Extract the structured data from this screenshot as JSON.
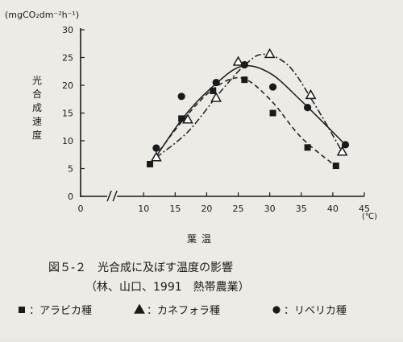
{
  "chart_data": {
    "type": "scatter",
    "unit_top": "(mgCO₂dm⁻²h⁻¹)",
    "ylabel": "光合成速度",
    "xlabel": "葉温",
    "xunit": "(℃)",
    "x_ticks": [
      0,
      10,
      15,
      20,
      25,
      30,
      35,
      40,
      45
    ],
    "y_ticks": [
      0,
      5,
      10,
      15,
      20,
      25,
      30
    ],
    "xlim": [
      0,
      45
    ],
    "ylim": [
      0,
      30
    ],
    "axis_break": true,
    "caption_title": "図５-２　光合成に及ぼす温度の影響",
    "caption_source": "（林、山口、1991　熱帯農業）",
    "series": [
      {
        "name": "アラビカ種",
        "marker": "square",
        "line": "dashed",
        "points": [
          [
            11,
            5.8
          ],
          [
            16,
            14
          ],
          [
            21,
            19
          ],
          [
            26,
            21
          ],
          [
            30.5,
            15
          ],
          [
            36,
            8.8
          ],
          [
            40.5,
            5.5
          ]
        ],
        "curve": [
          [
            11,
            5.8
          ],
          [
            16,
            13.4
          ],
          [
            21,
            19.3
          ],
          [
            25.5,
            21.3
          ],
          [
            30,
            17.5
          ],
          [
            35,
            10.6
          ],
          [
            40.5,
            5.4
          ]
        ]
      },
      {
        "name": "カネフォラ種",
        "marker": "triangle",
        "line": "dashdot",
        "points": [
          [
            12,
            7
          ],
          [
            17,
            13.8
          ],
          [
            21.5,
            17.7
          ],
          [
            25,
            24.2
          ],
          [
            30,
            25.6
          ],
          [
            36.5,
            18.2
          ],
          [
            41.5,
            8
          ]
        ],
        "curve": [
          [
            12,
            7
          ],
          [
            17,
            11.6
          ],
          [
            22,
            18.6
          ],
          [
            26,
            23.6
          ],
          [
            29,
            25.6
          ],
          [
            33,
            23.5
          ],
          [
            37,
            16.8
          ],
          [
            41.5,
            8
          ]
        ]
      },
      {
        "name": "リベリカ種",
        "marker": "circle",
        "line": "solid",
        "points": [
          [
            12,
            8.7
          ],
          [
            16,
            18
          ],
          [
            21.5,
            20.5
          ],
          [
            26,
            23.7
          ],
          [
            30.5,
            19.7
          ],
          [
            36,
            16
          ],
          [
            42,
            9.3
          ]
        ],
        "curve": [
          [
            12,
            7.2
          ],
          [
            16.5,
            14.5
          ],
          [
            21,
            19.8
          ],
          [
            25.5,
            23.4
          ],
          [
            30,
            22.2
          ],
          [
            35,
            17.2
          ],
          [
            42,
            9.3
          ]
        ]
      }
    ]
  },
  "legend": [
    {
      "marker": "square",
      "label": "：アラビカ種"
    },
    {
      "marker": "triangle",
      "label": "：カネフォラ種"
    },
    {
      "marker": "circle",
      "label": "：リベリカ種"
    }
  ],
  "colors": {
    "ink": "#1a1a1a",
    "paper": "#ecebe6"
  }
}
